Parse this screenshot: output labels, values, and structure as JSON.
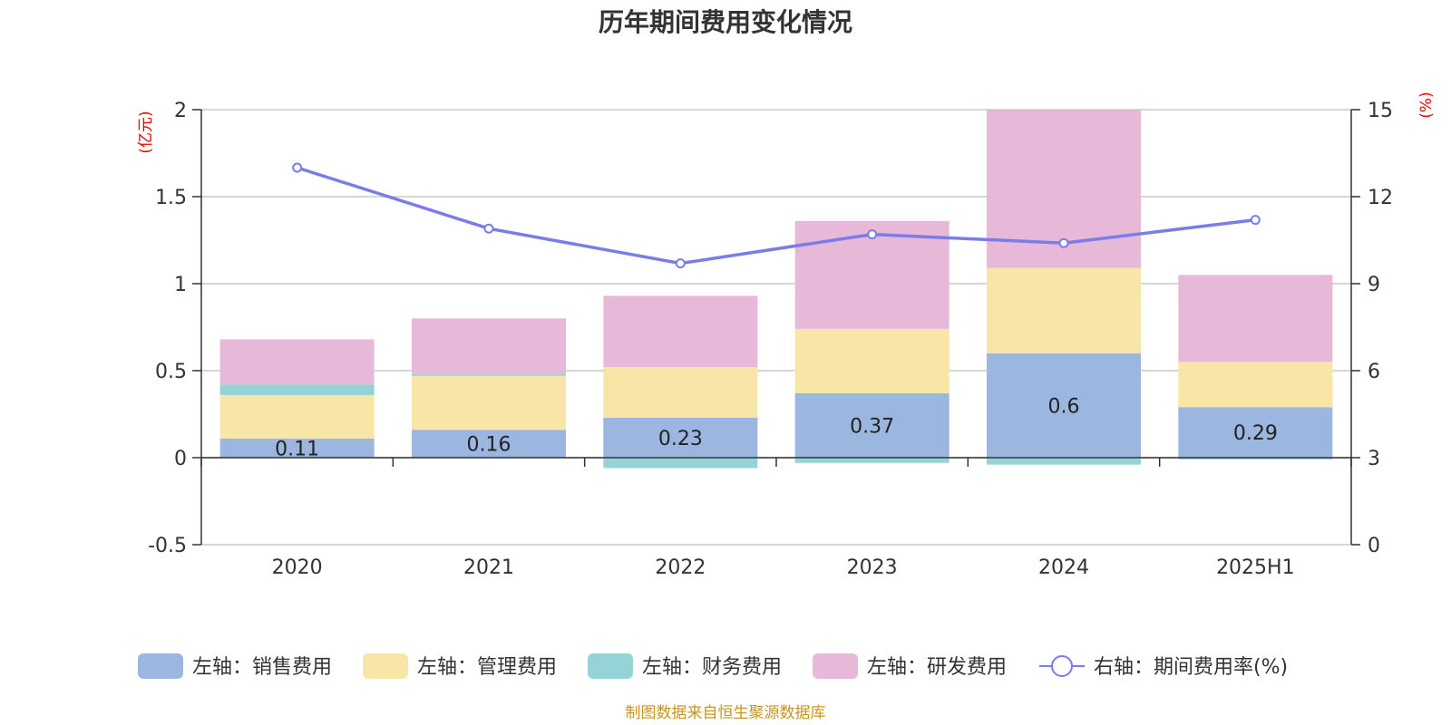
{
  "chart_data": {
    "type": "bar",
    "stacked": true,
    "title": "历年期间费用变化情况",
    "categories": [
      "2020",
      "2021",
      "2022",
      "2023",
      "2024",
      "2025H1"
    ],
    "left_axis": {
      "unit": "(亿元)",
      "range": [
        -0.5,
        2
      ],
      "ticks": [
        "2",
        "1.5",
        "1",
        "0.5",
        "0",
        "-0.5"
      ],
      "tick_values": [
        2,
        1.5,
        1,
        0.5,
        0,
        -0.5
      ]
    },
    "right_axis": {
      "unit": "(%)",
      "range": [
        0,
        15
      ],
      "ticks": [
        "15",
        "12",
        "9",
        "6",
        "3",
        "0"
      ],
      "tick_values": [
        15,
        12,
        9,
        6,
        3,
        0
      ]
    },
    "series": [
      {
        "name": "左轴：销售费用",
        "color": "#9bb7e0",
        "axis": "left",
        "values": [
          0.11,
          0.16,
          0.23,
          0.37,
          0.6,
          0.29
        ],
        "labels": [
          "0.11",
          "0.16",
          "0.23",
          "0.37",
          "0.6",
          "0.29"
        ]
      },
      {
        "name": "左轴：管理费用",
        "color": "#f8e6a8",
        "axis": "left",
        "values": [
          0.25,
          0.31,
          0.29,
          0.37,
          0.49,
          0.26
        ]
      },
      {
        "name": "左轴：财务费用",
        "color": "#96d3d6",
        "axis": "left",
        "values": [
          0.06,
          0.01,
          -0.06,
          -0.03,
          -0.04,
          -0.01
        ]
      },
      {
        "name": "左轴：研发费用",
        "color": "#e8b8d8",
        "axis": "left",
        "values": [
          0.26,
          0.32,
          0.41,
          0.62,
          0.91,
          0.5
        ]
      },
      {
        "name": "右轴：期间费用率(%)",
        "color": "#7b7ce8",
        "axis": "right",
        "type": "line",
        "values": [
          13.0,
          10.9,
          9.7,
          10.7,
          10.4,
          11.2
        ]
      }
    ],
    "grid": true,
    "legend_position": "bottom"
  },
  "source_note": "制图数据来自恒生聚源数据库"
}
